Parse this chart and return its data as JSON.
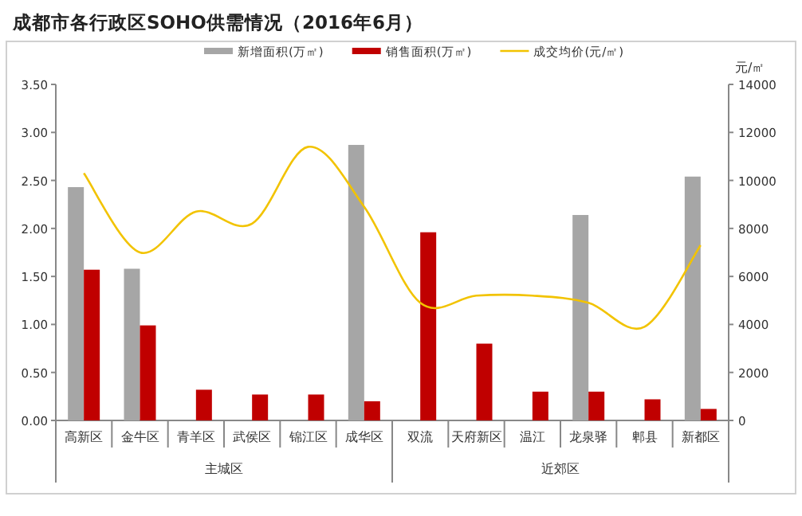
{
  "chart_data": {
    "type": "bar",
    "title": "成都市各行政区SOHO供需情况（2016年6月）",
    "y2label": "元/㎡",
    "categories": [
      "高新区",
      "金牛区",
      "青羊区",
      "武侯区",
      "锦江区",
      "成华区",
      "双流",
      "天府新区",
      "温江",
      "龙泉驿",
      "郫县",
      "新都区"
    ],
    "series": [
      {
        "name": "新增面积(万㎡)",
        "color": "#a6a6a6",
        "values": [
          2.43,
          1.58,
          null,
          null,
          null,
          2.87,
          null,
          null,
          null,
          2.14,
          null,
          2.54
        ]
      },
      {
        "name": "销售面积(万㎡)",
        "color": "#c00000",
        "values": [
          1.57,
          0.99,
          0.32,
          0.27,
          0.27,
          0.2,
          1.96,
          0.8,
          0.3,
          0.3,
          0.22,
          0.12
        ]
      },
      {
        "name": "成交均价(元/㎡)",
        "type": "line",
        "axis": "y2",
        "color": "#f2c300",
        "values": [
          10300,
          7000,
          8700,
          8200,
          11400,
          8900,
          4900,
          5200,
          5200,
          4900,
          3900,
          7300
        ]
      }
    ],
    "ylim": [
      0,
      3.5
    ],
    "yticks": [
      {
        "value": 0,
        "label": "0.00"
      },
      {
        "value": 0.5,
        "label": "0.50"
      },
      {
        "value": 1,
        "label": "1.00"
      },
      {
        "value": 1.5,
        "label": "1.50"
      },
      {
        "value": 2,
        "label": "2.00"
      },
      {
        "value": 2.5,
        "label": "2.50"
      },
      {
        "value": 3,
        "label": "3.00"
      },
      {
        "value": 3.5,
        "label": "3.50"
      }
    ],
    "y2lim": [
      0,
      14000
    ],
    "y2ticks": [
      0,
      2000,
      4000,
      6000,
      8000,
      10000,
      12000,
      14000
    ],
    "annotations": [
      "主城区",
      "近郊区"
    ],
    "legend": "top",
    "grid": false,
    "marker": "none"
  }
}
